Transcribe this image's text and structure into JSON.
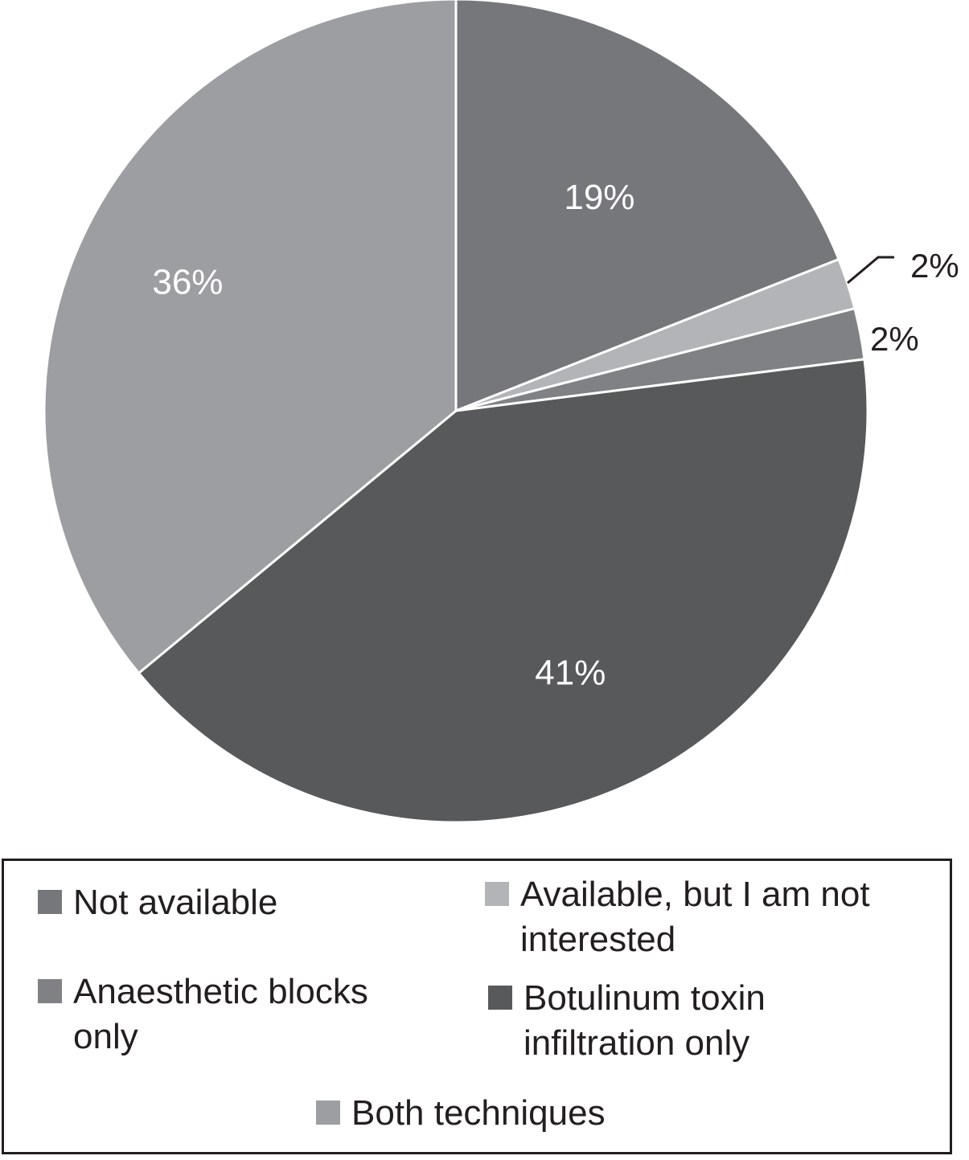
{
  "chart_data": {
    "type": "pie",
    "title": "",
    "start_angle_deg": 0,
    "direction": "clockwise",
    "slices": [
      {
        "label": "Not available",
        "value": 19,
        "value_label": "19%",
        "color": "#76777b"
      },
      {
        "label": "Available, but I am not interested",
        "value": 2,
        "value_label": "2%",
        "color": "#b3b4b7"
      },
      {
        "label": "Anaesthetic blocks only",
        "value": 2,
        "value_label": "2%",
        "color": "#808184"
      },
      {
        "label": "Botulinum toxin infiltration only",
        "value": 41,
        "value_label": "41%",
        "color": "#58595b"
      },
      {
        "label": "Both techniques",
        "value": 36,
        "value_label": "36%",
        "color": "#9d9ea1"
      }
    ],
    "legend_placement": "bottom"
  },
  "legend": {
    "items": [
      {
        "lines": [
          "Not available"
        ],
        "color": "#76777b"
      },
      {
        "lines": [
          "Available, but I am not",
          "interested"
        ],
        "color": "#b3b4b7"
      },
      {
        "lines": [
          "Anaesthetic blocks",
          "only"
        ],
        "color": "#808184"
      },
      {
        "lines": [
          "Botulinum toxin",
          "infiltration only"
        ],
        "color": "#58595b"
      },
      {
        "lines": [
          "Both techniques"
        ],
        "color": "#9d9ea1"
      }
    ]
  }
}
